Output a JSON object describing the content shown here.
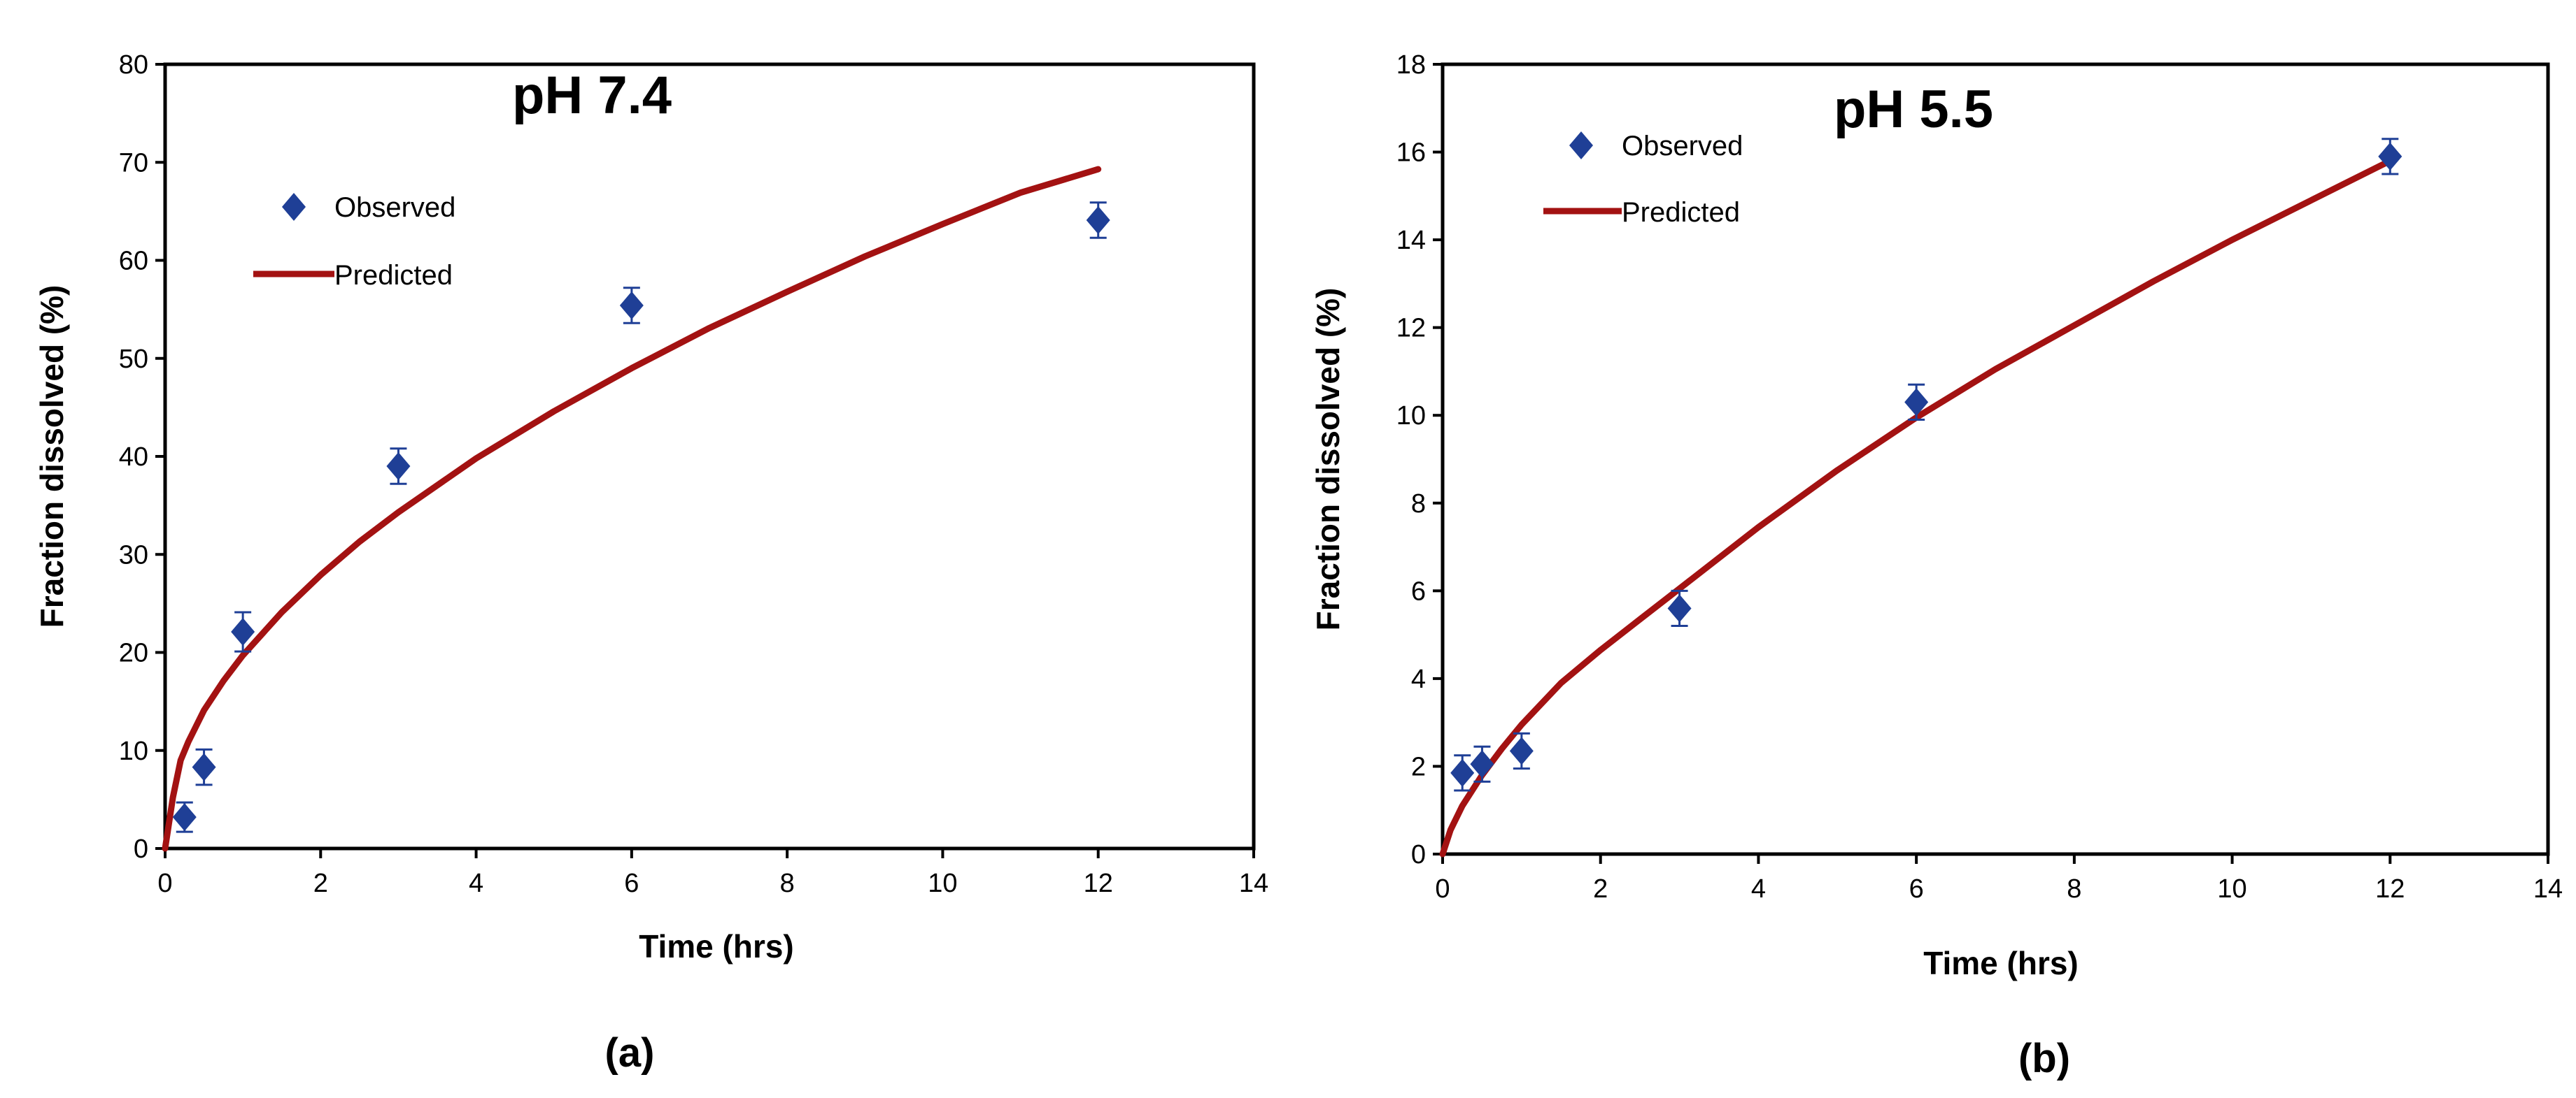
{
  "chart_data": [
    {
      "type": "scatter",
      "title": "pH 7.4",
      "panel_label": "(a)",
      "xlabel": "Time (hrs)",
      "ylabel": "Fraction dissolved (%)",
      "xlim": [
        0,
        14
      ],
      "ylim": [
        0,
        80
      ],
      "xticks": [
        0,
        2,
        4,
        6,
        8,
        10,
        12,
        14
      ],
      "yticks": [
        0,
        10,
        20,
        30,
        40,
        50,
        60,
        70,
        80
      ],
      "grid": false,
      "legend_position": "top-left",
      "series": [
        {
          "name": "Observed",
          "kind": "markers",
          "marker": "diamond",
          "color": "#1f3f96",
          "x": [
            0.25,
            0.5,
            1,
            3,
            6,
            12
          ],
          "y": [
            3.2,
            8.3,
            22.1,
            39.0,
            55.4,
            64.1
          ],
          "error": [
            1.5,
            1.8,
            2.0,
            1.8,
            1.8,
            1.8
          ]
        },
        {
          "name": "Predicted",
          "kind": "line",
          "color": "#a31212",
          "x": [
            0,
            0.1,
            0.2,
            0.3,
            0.5,
            0.75,
            1,
            1.5,
            2,
            2.5,
            3,
            4,
            5,
            6,
            7,
            8,
            9,
            10,
            11,
            12
          ],
          "y": [
            0,
            5.2,
            9.0,
            10.9,
            14.1,
            17.1,
            19.7,
            24.1,
            27.9,
            31.3,
            34.3,
            39.8,
            44.6,
            49.0,
            53.1,
            56.8,
            60.4,
            63.7,
            66.9,
            69.3
          ]
        }
      ]
    },
    {
      "type": "scatter",
      "title": "pH 5.5",
      "panel_label": "(b)",
      "xlabel": "Time (hrs)",
      "ylabel": "Fraction dissolved (%)",
      "xlim": [
        0,
        14
      ],
      "ylim": [
        0,
        18
      ],
      "xticks": [
        0,
        2,
        4,
        6,
        8,
        10,
        12,
        14
      ],
      "yticks": [
        0,
        2,
        4,
        6,
        8,
        10,
        12,
        14,
        16,
        18
      ],
      "grid": false,
      "legend_position": "top-left",
      "series": [
        {
          "name": "Observed",
          "kind": "markers",
          "marker": "diamond",
          "color": "#1f3f96",
          "x": [
            0.25,
            0.5,
            1,
            3,
            6,
            12
          ],
          "y": [
            1.85,
            2.05,
            2.35,
            5.6,
            10.3,
            15.9
          ],
          "error": [
            0.4,
            0.4,
            0.4,
            0.4,
            0.4,
            0.4
          ]
        },
        {
          "name": "Predicted",
          "kind": "line",
          "color": "#a31212",
          "x": [
            0,
            0.1,
            0.25,
            0.5,
            0.75,
            1,
            1.5,
            2,
            2.5,
            3,
            4,
            5,
            6,
            7,
            8,
            9,
            10,
            11,
            12
          ],
          "y": [
            0,
            0.55,
            1.1,
            1.8,
            2.4,
            2.95,
            3.9,
            4.65,
            5.35,
            6.05,
            7.45,
            8.75,
            9.95,
            11.05,
            12.05,
            13.05,
            14.0,
            14.9,
            15.8
          ]
        }
      ]
    }
  ]
}
